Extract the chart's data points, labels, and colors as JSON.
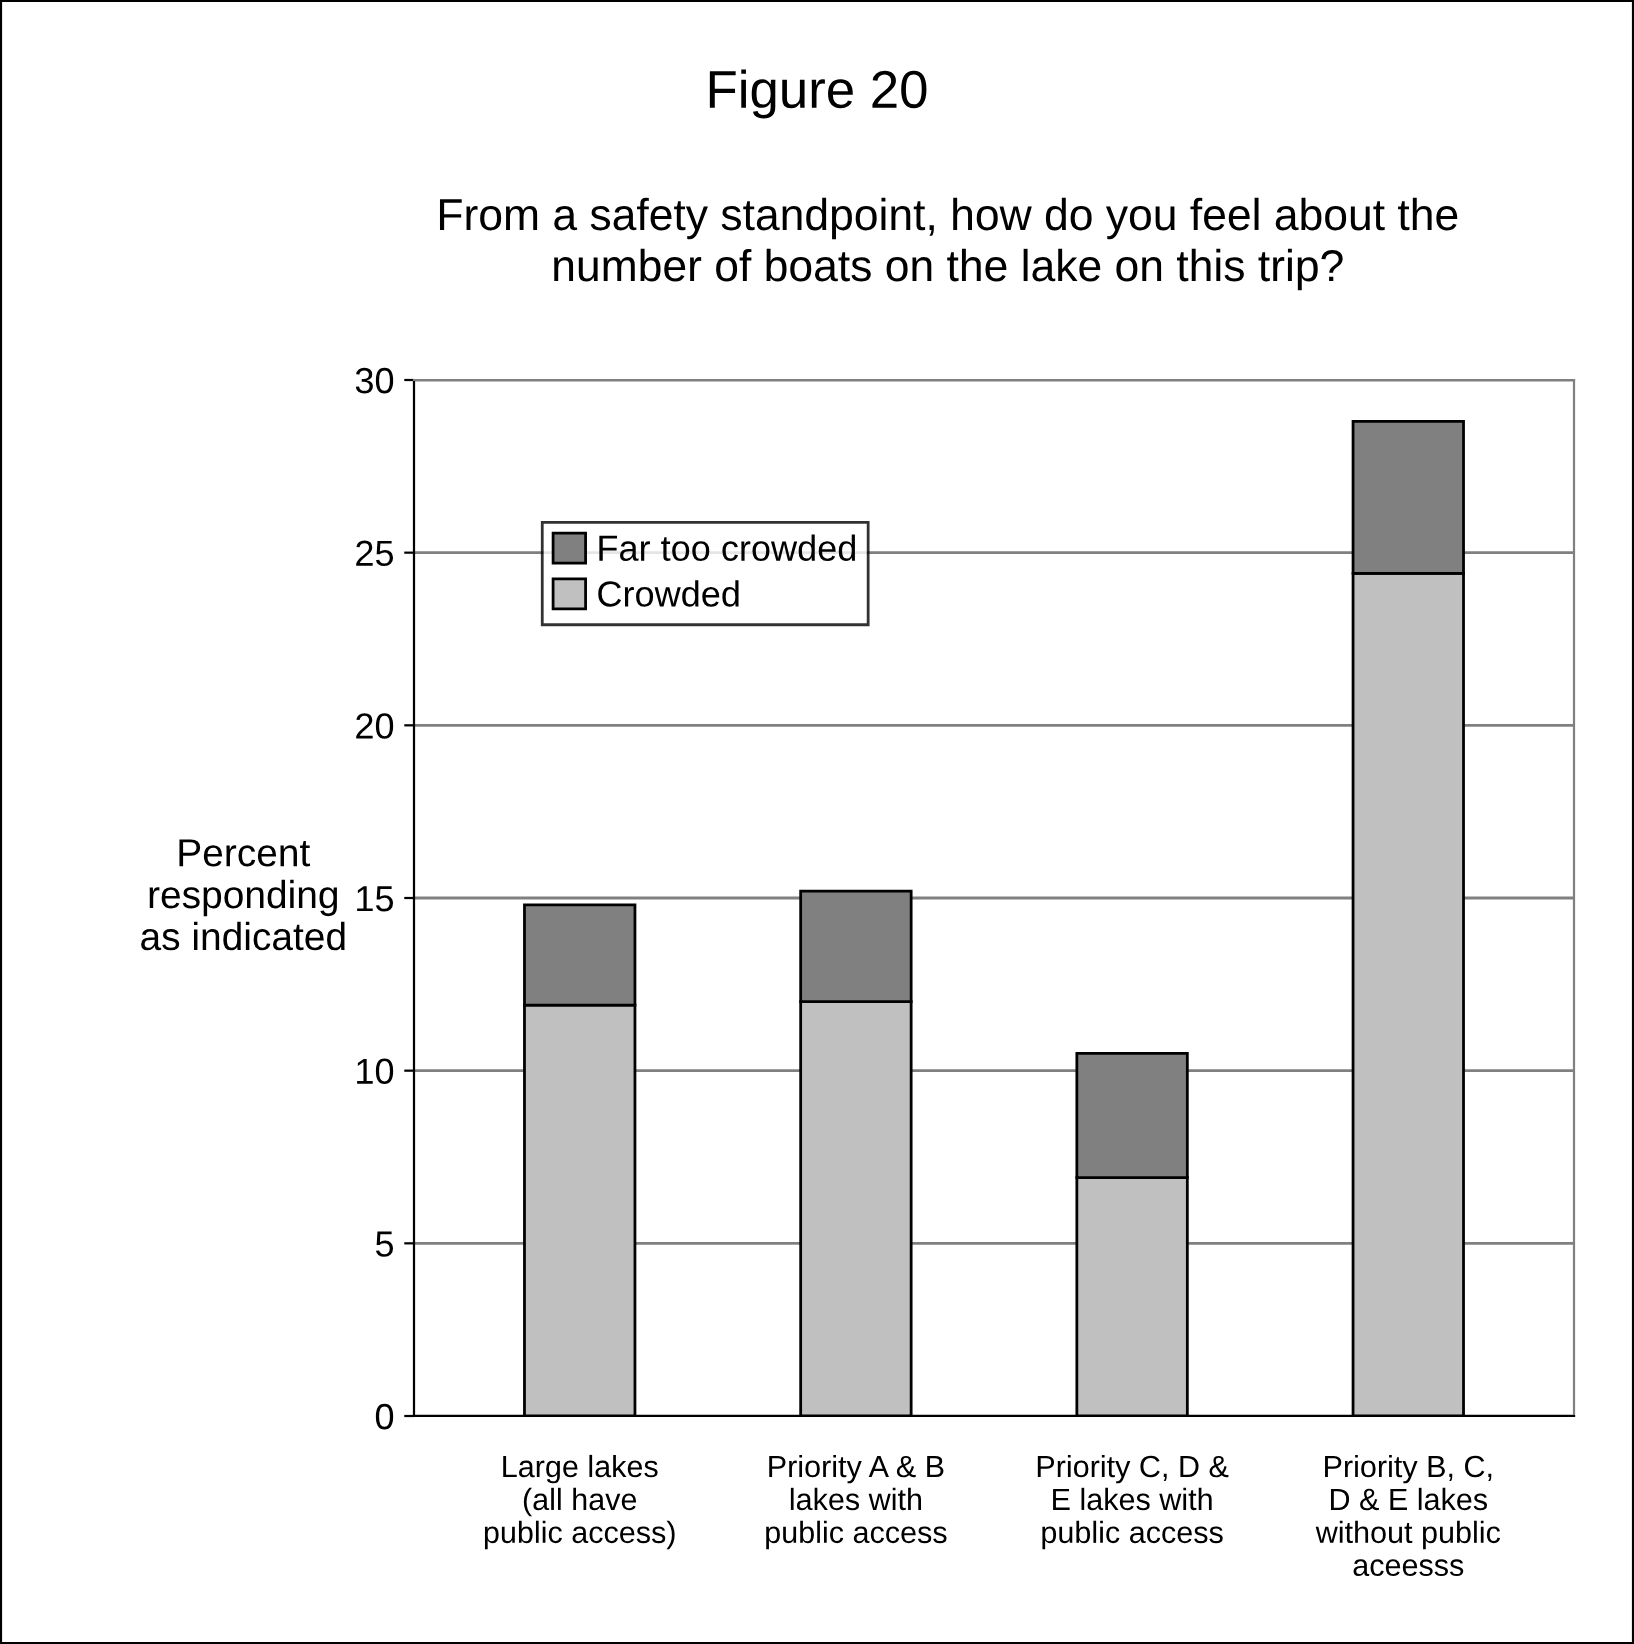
{
  "chart_data": {
    "type": "bar",
    "stacked": true,
    "title": "Figure 20",
    "subtitle": "From a safety standpoint, how do you feel about the\nnumber of boats on the lake on this trip?",
    "ylabel": "Percent\nresponding\nas indicated",
    "categories": [
      "Large lakes\n(all have\npublic access)",
      "Priority A & B\nlakes with\npublic access",
      "Priority C, D &\nE lakes with\npublic access",
      "Priority B, C,\nD & E lakes\nwithout public\naceesss"
    ],
    "series": [
      {
        "name": "Crowded",
        "color": "#c0c0c0",
        "values": [
          11.9,
          12.0,
          6.9,
          24.4
        ]
      },
      {
        "name": "Far too crowded",
        "color": "#808080",
        "values": [
          2.9,
          3.2,
          3.6,
          4.4
        ]
      }
    ],
    "ylim": [
      0,
      30
    ],
    "yticks": [
      0,
      5,
      10,
      15,
      20,
      25,
      30
    ],
    "grid": "y",
    "legend": "top left"
  }
}
